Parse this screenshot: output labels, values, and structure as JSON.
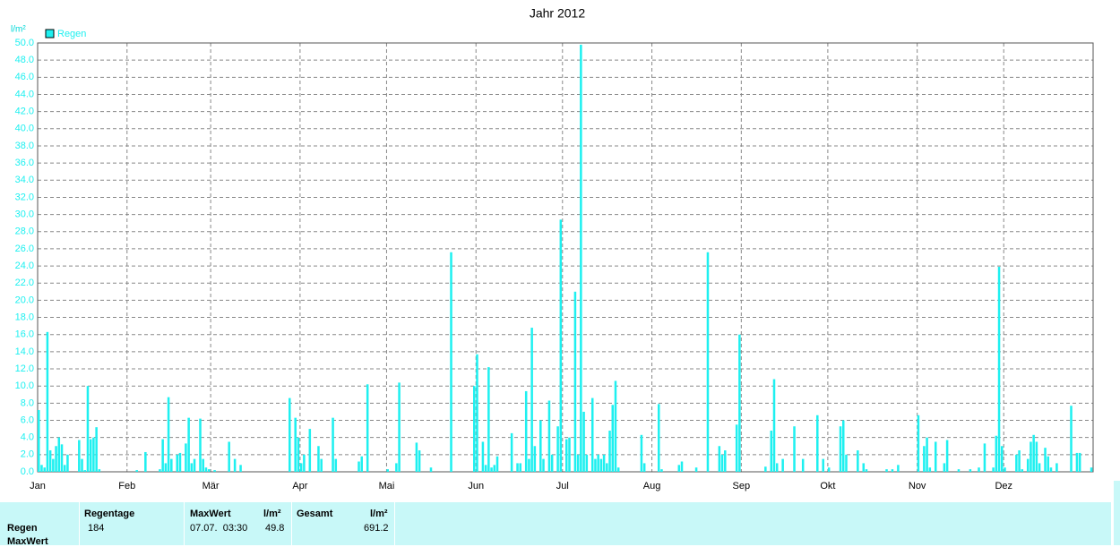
{
  "chart_data": {
    "type": "bar",
    "title": "Jahr 2012",
    "y_label": "l/m²",
    "categories": [
      "Jan",
      null,
      null,
      null,
      null,
      null,
      null,
      null,
      null,
      null,
      null,
      null,
      null,
      null,
      null,
      null,
      null,
      null,
      null,
      null,
      null,
      null,
      null,
      null,
      null,
      null,
      null,
      null,
      null,
      null,
      null,
      "Feb",
      null,
      null,
      null,
      null,
      null,
      null,
      null,
      null,
      null,
      null,
      null,
      null,
      null,
      null,
      null,
      null,
      null,
      null,
      null,
      null,
      null,
      null,
      null,
      null,
      null,
      null,
      null,
      null,
      "Mär",
      null,
      null,
      null,
      null,
      null,
      null,
      null,
      null,
      null,
      null,
      null,
      null,
      null,
      null,
      null,
      null,
      null,
      null,
      null,
      null,
      null,
      null,
      null,
      null,
      null,
      null,
      null,
      null,
      null,
      null,
      "Apr",
      null,
      null,
      null,
      null,
      null,
      null,
      null,
      null,
      null,
      null,
      null,
      null,
      null,
      null,
      null,
      null,
      null,
      null,
      null,
      null,
      null,
      null,
      null,
      null,
      null,
      null,
      null,
      null,
      null,
      "Mai",
      null,
      null,
      null,
      null,
      null,
      null,
      null,
      null,
      null,
      null,
      null,
      null,
      null,
      null,
      null,
      null,
      null,
      null,
      null,
      null,
      null,
      null,
      null,
      null,
      null,
      null,
      null,
      null,
      null,
      null,
      "Jun",
      null,
      null,
      null,
      null,
      null,
      null,
      null,
      null,
      null,
      null,
      null,
      null,
      null,
      null,
      null,
      null,
      null,
      null,
      null,
      null,
      null,
      null,
      null,
      null,
      null,
      null,
      null,
      null,
      null,
      "Jul",
      null,
      null,
      null,
      null,
      null,
      null,
      null,
      null,
      null,
      null,
      null,
      null,
      null,
      null,
      null,
      null,
      null,
      null,
      null,
      null,
      null,
      null,
      null,
      null,
      null,
      null,
      null,
      null,
      null,
      null,
      "Aug",
      null,
      null,
      null,
      null,
      null,
      null,
      null,
      null,
      null,
      null,
      null,
      null,
      null,
      null,
      null,
      null,
      null,
      null,
      null,
      null,
      null,
      null,
      null,
      null,
      null,
      null,
      null,
      null,
      null,
      null,
      "Sep",
      null,
      null,
      null,
      null,
      null,
      null,
      null,
      null,
      null,
      null,
      null,
      null,
      null,
      null,
      null,
      null,
      null,
      null,
      null,
      null,
      null,
      null,
      null,
      null,
      null,
      null,
      null,
      null,
      null,
      "Okt",
      null,
      null,
      null,
      null,
      null,
      null,
      null,
      null,
      null,
      null,
      null,
      null,
      null,
      null,
      null,
      null,
      null,
      null,
      null,
      null,
      null,
      null,
      null,
      null,
      null,
      null,
      null,
      null,
      null,
      null,
      "Nov",
      null,
      null,
      null,
      null,
      null,
      null,
      null,
      null,
      null,
      null,
      null,
      null,
      null,
      null,
      null,
      null,
      null,
      null,
      null,
      null,
      null,
      null,
      null,
      null,
      null,
      null,
      null,
      null,
      null,
      "Dez",
      null,
      null,
      null,
      null,
      null,
      null,
      null,
      null,
      null,
      null,
      null,
      null,
      null,
      null,
      null,
      null,
      null,
      null,
      null,
      null,
      null,
      null,
      null,
      null,
      null,
      null,
      null,
      null,
      null,
      null
    ],
    "series": [
      {
        "name": "Regen",
        "color": "#1ef0f0",
        "values": [
          7.2,
          0.8,
          0.5,
          16.3,
          2.5,
          1.5,
          3.0,
          4.0,
          3.2,
          0.8,
          2.0,
          0,
          0,
          0,
          3.7,
          1.5,
          0.2,
          10.0,
          3.8,
          4.0,
          5.2,
          0.3,
          0,
          0,
          0,
          0,
          0,
          0,
          0,
          0,
          0,
          0,
          0,
          0,
          0.2,
          0,
          0,
          2.3,
          0,
          0,
          0,
          0,
          0.3,
          3.8,
          1.0,
          8.7,
          1.5,
          0,
          2.0,
          2.2,
          0,
          3.3,
          6.3,
          1.0,
          1.5,
          0,
          6.2,
          1.5,
          0.5,
          0.3,
          0,
          0.2,
          0,
          0,
          0,
          0,
          3.5,
          0,
          1.5,
          0,
          0.8,
          0,
          0,
          0,
          0,
          0,
          0,
          0,
          0,
          0,
          0,
          0,
          0,
          0,
          0,
          0,
          0,
          8.6,
          0,
          6.3,
          4.0,
          1.0,
          2.0,
          0,
          5.0,
          0,
          0,
          3.0,
          1.5,
          0,
          0,
          0,
          6.3,
          1.5,
          0,
          0,
          0,
          0,
          0,
          0,
          0,
          1.2,
          1.8,
          0,
          10.2,
          0,
          0,
          0,
          0,
          0,
          0,
          0.3,
          0,
          0,
          1.0,
          10.4,
          0,
          0,
          0,
          0,
          0,
          3.4,
          2.5,
          0,
          0,
          0,
          0.5,
          0,
          0,
          0,
          0,
          0,
          0,
          25.6,
          0,
          0,
          0,
          0,
          0,
          0,
          0,
          10.0,
          13.7,
          0,
          3.5,
          0.8,
          12.2,
          0.5,
          0.8,
          1.8,
          0,
          0,
          0,
          0,
          4.5,
          0,
          1.0,
          1.0,
          0,
          9.4,
          1.5,
          16.8,
          3.0,
          0,
          6.0,
          1.5,
          0,
          8.3,
          2.0,
          0,
          5.3,
          29.4,
          0,
          3.8,
          4.0,
          0,
          21.0,
          2.0,
          49.8,
          7.0,
          2.0,
          0,
          8.6,
          1.5,
          2.0,
          1.5,
          2.0,
          1.0,
          4.8,
          7.8,
          10.6,
          0.5,
          0,
          0,
          0,
          0,
          0,
          0,
          0,
          4.3,
          1.0,
          0,
          0,
          0,
          0,
          7.9,
          0.3,
          0,
          0,
          0,
          0,
          0,
          0.8,
          1.2,
          0,
          0,
          0,
          0,
          0.5,
          0,
          0,
          0,
          25.6,
          0,
          0,
          0,
          3.0,
          2.0,
          2.5,
          0,
          0,
          0,
          5.5,
          16.0,
          0,
          0,
          0,
          0,
          0,
          0,
          0,
          0,
          0.6,
          0,
          4.8,
          10.8,
          1.0,
          0,
          1.5,
          0,
          0,
          0,
          5.3,
          0,
          0,
          1.5,
          0,
          0,
          0,
          0,
          6.6,
          0,
          1.5,
          0,
          0.5,
          0,
          0,
          0,
          5.3,
          6.0,
          2.0,
          0,
          0,
          0,
          2.5,
          0,
          1.0,
          0.3,
          0,
          0,
          0,
          0,
          0,
          0,
          0.3,
          0,
          0.3,
          0,
          0.8,
          0,
          0,
          0,
          0,
          0,
          0,
          6.6,
          0,
          3.0,
          4.0,
          0.5,
          0,
          3.5,
          0,
          0,
          1.0,
          3.7,
          0,
          0,
          0,
          0.3,
          0,
          0,
          0,
          0.3,
          0,
          0,
          0.5,
          0,
          3.3,
          0,
          0,
          0.5,
          4.2,
          23.9,
          3.0,
          0.5,
          0,
          0,
          0,
          2.0,
          2.5,
          0.3,
          0,
          1.5,
          3.5,
          4.3,
          3.5,
          1.0,
          0,
          2.8,
          1.8,
          0.5,
          0,
          1.0,
          0,
          0,
          0,
          0,
          7.7,
          0,
          2.2,
          2.2,
          0,
          0,
          0,
          0.5
        ]
      }
    ],
    "ylim": [
      0,
      50
    ],
    "yticks": [
      {
        "value": 0,
        "label": "0.0"
      },
      {
        "value": 2,
        "label": "2.0"
      },
      {
        "value": 4,
        "label": "4.0"
      },
      {
        "value": 6,
        "label": "6.0"
      },
      {
        "value": 8,
        "label": "8.0"
      },
      {
        "value": 10,
        "label": "10.0"
      },
      {
        "value": 12,
        "label": "12.0"
      },
      {
        "value": 14,
        "label": "14.0"
      },
      {
        "value": 16,
        "label": "16.0"
      },
      {
        "value": 18,
        "label": "18.0"
      },
      {
        "value": 20,
        "label": "20.0"
      },
      {
        "value": 22,
        "label": "22.0"
      },
      {
        "value": 24,
        "label": "24.0"
      },
      {
        "value": 26,
        "label": "26.0"
      },
      {
        "value": 28,
        "label": "28.0"
      },
      {
        "value": 30,
        "label": "30.0"
      },
      {
        "value": 32,
        "label": "32.0"
      },
      {
        "value": 34,
        "label": "34.0"
      },
      {
        "value": 36,
        "label": "36.0"
      },
      {
        "value": 38,
        "label": "38.0"
      },
      {
        "value": 40,
        "label": "40.0"
      },
      {
        "value": 42,
        "label": "42.0"
      },
      {
        "value": 44,
        "label": "44.0"
      },
      {
        "value": 46,
        "label": "46.0"
      },
      {
        "value": 48,
        "label": "48.0"
      },
      {
        "value": 50,
        "label": "50.0"
      }
    ],
    "grid": true
  },
  "summary": {
    "headers": [
      "Regentage",
      "MaxWert",
      "l/m²",
      "Gesamt",
      "l/m²"
    ],
    "rows": [
      {
        "label": "Regen",
        "regentage": "184",
        "maxwert_time": "07.07.  03:30",
        "maxwert": "49.8",
        "gesamt": "691.2"
      },
      {
        "label": "MaxWert"
      }
    ]
  }
}
